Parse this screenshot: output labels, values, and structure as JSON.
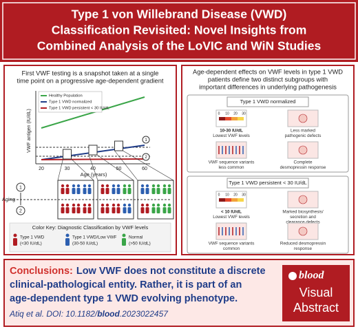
{
  "header": {
    "title_lines": [
      "Type 1 von Willebrand Disease (VWD)",
      "Classification Revisited: Novel Insights from",
      "Combined Analysis of the LoVIC and WiN Studies"
    ]
  },
  "left_panel": {
    "caption_lines": [
      "First VWF testing is a snapshot taken at a single",
      "time point on a progressive age-dependent gradient"
    ],
    "legend": [
      "Healthy Population",
      "Type 1 VWD normalized",
      "Type 1 VWD persistent < 30 IU/dL"
    ],
    "y_label": "VWF antigen (IU/dL)",
    "x_label": "Age (years)",
    "x_ticks": [
      "20",
      "30",
      "40",
      "50",
      "60"
    ],
    "markers": [
      "1",
      "2"
    ],
    "aging": "Aging",
    "key_title": "Color Key: Diagnostic Classification by VWF levels",
    "key": [
      [
        "Type 1 VWD",
        "(<30 IU/dL)"
      ],
      [
        "Type 1 VWD/Low VWF",
        "(30-50 IU/dL)"
      ],
      [
        "Normal",
        "(>50 IU/dL)"
      ]
    ]
  },
  "right_panel": {
    "caption_lines": [
      "Age-dependent effects on VWF levels in type 1 VWD",
      "patients define two distinct subgroups with",
      "important differences in underlying pathogenesis"
    ],
    "scale_ticks": [
      "0",
      "10",
      "20",
      "30"
    ],
    "groups": [
      {
        "title": "Type 1 VWD normalized",
        "cells": [
          [
            "10-30 IU/dL",
            "Lowest VWF levels"
          ],
          [
            "Less marked",
            "pathogenic defects"
          ],
          [
            "VWF sequence variants",
            "less common"
          ],
          [
            "Complete",
            "desmopressin response"
          ]
        ]
      },
      {
        "title": "Type 1 VWD persistent < 30 IU/dL",
        "cells": [
          [
            "< 10 IU/dL",
            "Lowest VWF levels"
          ],
          [
            "Marked biosynthesis/",
            "secretion and",
            "clearance defects"
          ],
          [
            "VWF sequence variants",
            "common"
          ],
          [
            "Reduced desmopressin",
            "response"
          ]
        ]
      }
    ]
  },
  "conclusions": {
    "label": "Conclusions:",
    "lines": [
      "Low VWF does not constitute a discrete",
      "clinical-pathological entity. Rather, it is part of an",
      "age-dependent type 1 VWD evolving phenotype."
    ],
    "citation": [
      "Atiq et al. DOI: 10.1182/",
      "blood",
      ".2023022457"
    ]
  },
  "logo": {
    "brand": "blood",
    "lines": [
      "Visual",
      "Abstract"
    ]
  }
}
